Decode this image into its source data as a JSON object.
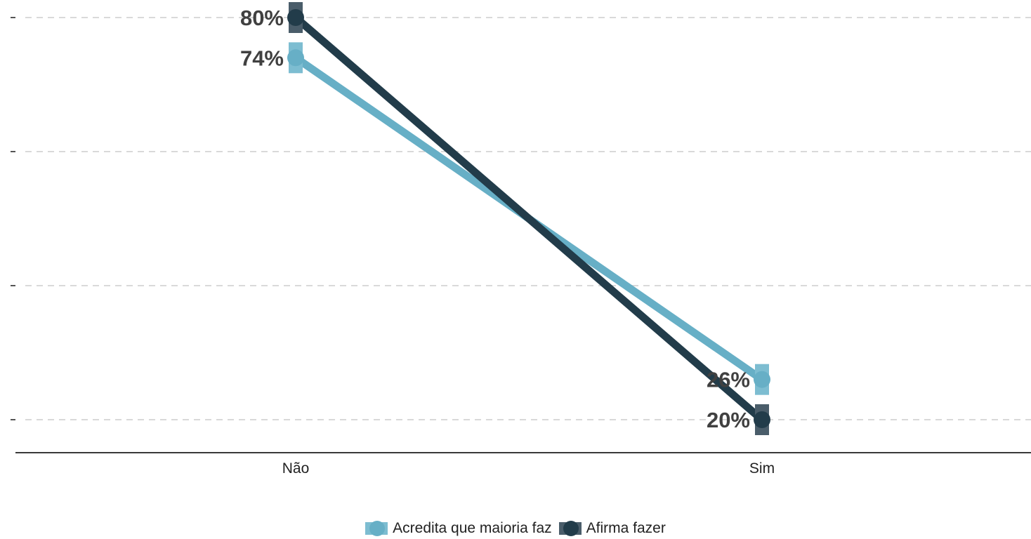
{
  "chart_data": {
    "type": "line",
    "categories": [
      "Não",
      "Sim"
    ],
    "ylim": [
      20,
      80
    ],
    "grid": true,
    "legend_position": "bottom",
    "series": [
      {
        "name": "Acredita que maioria faz",
        "values": [
          74,
          26
        ],
        "labels": [
          "74%",
          "26%"
        ],
        "color": "#67afc6",
        "marker_color": "#7dbdd1"
      },
      {
        "name": "Afirma fazer",
        "values": [
          80,
          20
        ],
        "labels": [
          "80%",
          "20%"
        ],
        "color": "#223c4a",
        "marker_color": "#4a5d6a"
      }
    ]
  }
}
